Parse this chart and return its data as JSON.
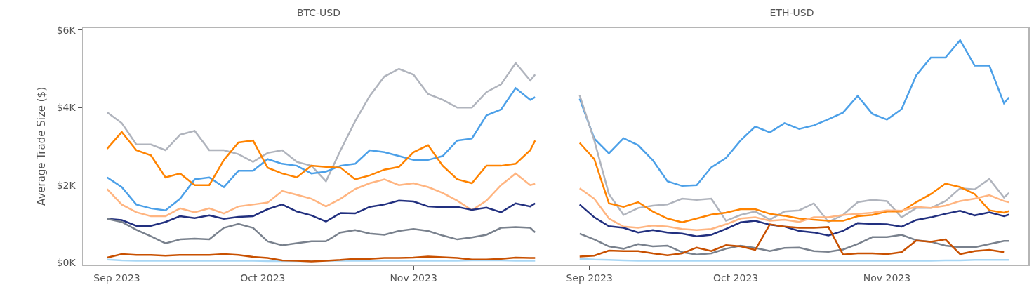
{
  "chart_data": [
    {
      "type": "line",
      "title": "BTC-USD",
      "ylabel": "Average Trade Size ($)",
      "x": [
        "2023-08-30",
        "2023-09-02",
        "2023-09-05",
        "2023-09-08",
        "2023-09-11",
        "2023-09-14",
        "2023-09-17",
        "2023-09-20",
        "2023-09-23",
        "2023-09-26",
        "2023-09-29",
        "2023-10-02",
        "2023-10-05",
        "2023-10-08",
        "2023-10-11",
        "2023-10-14",
        "2023-10-17",
        "2023-10-20",
        "2023-10-23",
        "2023-10-26",
        "2023-10-29",
        "2023-11-01",
        "2023-11-04",
        "2023-11-07",
        "2023-11-10",
        "2023-11-13",
        "2023-11-16",
        "2023-11-19",
        "2023-11-22",
        "2023-11-25",
        "2023-11-26"
      ],
      "xlim": [
        "2023-08-25",
        "2023-11-30"
      ],
      "xticks": [
        {
          "value": "2023-09-01",
          "label": "Sep 2023"
        },
        {
          "value": "2023-10-01",
          "label": "Oct 2023"
        },
        {
          "value": "2023-11-01",
          "label": "Nov 2023"
        }
      ],
      "ylim": [
        -0.05,
        6.05
      ],
      "yticks": [
        {
          "value": 0,
          "label": "$0K"
        },
        {
          "value": 2,
          "label": "$2K"
        },
        {
          "value": 4,
          "label": "$4K"
        },
        {
          "value": 6,
          "label": "$6K"
        }
      ],
      "series": [
        {
          "color": "#b0b4bd",
          "values": [
            3.88,
            3.6,
            3.05,
            3.05,
            2.9,
            3.3,
            3.4,
            2.9,
            2.9,
            2.8,
            2.6,
            2.83,
            2.9,
            2.6,
            2.5,
            2.1,
            2.9,
            3.65,
            4.3,
            4.8,
            5.0,
            4.85,
            4.35,
            4.2,
            4.0,
            4.0,
            4.4,
            4.6,
            5.15,
            4.7,
            4.85
          ]
        },
        {
          "color": "#4ca0e8",
          "values": [
            2.2,
            1.95,
            1.5,
            1.4,
            1.35,
            1.65,
            2.15,
            2.2,
            1.95,
            2.37,
            2.37,
            2.67,
            2.55,
            2.5,
            2.3,
            2.35,
            2.5,
            2.55,
            2.9,
            2.85,
            2.75,
            2.65,
            2.65,
            2.75,
            3.15,
            3.2,
            3.8,
            3.95,
            4.5,
            4.2,
            4.27
          ]
        },
        {
          "color": "#ff8300",
          "values": [
            2.94,
            3.37,
            2.9,
            2.77,
            2.2,
            2.3,
            2.0,
            2.0,
            2.65,
            3.1,
            3.15,
            2.45,
            2.3,
            2.2,
            2.5,
            2.47,
            2.45,
            2.15,
            2.25,
            2.4,
            2.47,
            2.85,
            3.03,
            2.5,
            2.15,
            2.05,
            2.5,
            2.5,
            2.55,
            2.9,
            3.15
          ]
        },
        {
          "color": "#ffb581",
          "values": [
            1.9,
            1.5,
            1.3,
            1.2,
            1.2,
            1.4,
            1.3,
            1.4,
            1.27,
            1.45,
            1.5,
            1.55,
            1.85,
            1.75,
            1.65,
            1.45,
            1.65,
            1.9,
            2.05,
            2.15,
            2.0,
            2.05,
            1.95,
            1.8,
            1.6,
            1.35,
            1.6,
            2.0,
            2.3,
            2.0,
            2.03
          ]
        },
        {
          "color": "#22307f",
          "values": [
            1.13,
            1.1,
            0.95,
            0.95,
            1.05,
            1.2,
            1.15,
            1.22,
            1.13,
            1.18,
            1.2,
            1.38,
            1.5,
            1.32,
            1.22,
            1.06,
            1.28,
            1.27,
            1.44,
            1.5,
            1.6,
            1.58,
            1.45,
            1.43,
            1.44,
            1.36,
            1.42,
            1.3,
            1.53,
            1.45,
            1.53
          ]
        },
        {
          "color": "#79818d",
          "values": [
            1.13,
            1.05,
            0.85,
            0.68,
            0.5,
            0.6,
            0.62,
            0.6,
            0.9,
            1.0,
            0.9,
            0.55,
            0.45,
            0.5,
            0.55,
            0.55,
            0.78,
            0.84,
            0.75,
            0.72,
            0.82,
            0.87,
            0.82,
            0.7,
            0.6,
            0.65,
            0.72,
            0.9,
            0.92,
            0.9,
            0.78
          ]
        },
        {
          "color": "#a9d7f5",
          "values": [
            0.08,
            0.06,
            0.05,
            0.05,
            0.05,
            0.05,
            0.05,
            0.05,
            0.05,
            0.05,
            0.05,
            0.04,
            0.04,
            0.04,
            0.04,
            0.05,
            0.05,
            0.05,
            0.05,
            0.05,
            0.05,
            0.05,
            0.05,
            0.05,
            0.05,
            0.06,
            0.06,
            0.06,
            0.05,
            0.05,
            0.05
          ]
        },
        {
          "color": "#c85000",
          "values": [
            0.13,
            0.22,
            0.2,
            0.2,
            0.18,
            0.2,
            0.2,
            0.2,
            0.22,
            0.2,
            0.15,
            0.12,
            0.06,
            0.05,
            0.03,
            0.05,
            0.07,
            0.1,
            0.1,
            0.12,
            0.12,
            0.13,
            0.16,
            0.14,
            0.12,
            0.08,
            0.08,
            0.1,
            0.13,
            0.12,
            0.12
          ]
        }
      ]
    },
    {
      "type": "line",
      "title": "ETH-USD",
      "tick_labels": "x",
      "x": [
        "2023-08-30",
        "2023-09-02",
        "2023-09-05",
        "2023-09-08",
        "2023-09-11",
        "2023-09-14",
        "2023-09-17",
        "2023-09-20",
        "2023-09-23",
        "2023-09-26",
        "2023-09-29",
        "2023-10-02",
        "2023-10-05",
        "2023-10-08",
        "2023-10-11",
        "2023-10-14",
        "2023-10-17",
        "2023-10-20",
        "2023-10-23",
        "2023-10-26",
        "2023-10-29",
        "2023-11-01",
        "2023-11-04",
        "2023-11-07",
        "2023-11-10",
        "2023-11-13",
        "2023-11-16",
        "2023-11-19",
        "2023-11-22",
        "2023-11-25",
        "2023-11-26"
      ],
      "xlim": [
        "2023-08-25",
        "2023-11-30"
      ],
      "xticks": [
        {
          "value": "2023-09-01",
          "label": "Sep 2023"
        },
        {
          "value": "2023-10-01",
          "label": "Oct 2023"
        },
        {
          "value": "2023-11-01",
          "label": "Nov 2023"
        }
      ],
      "ylim": [
        -0.05,
        6.05
      ],
      "series": [
        {
          "color": "#4ca0e8",
          "values": [
            4.23,
            3.2,
            2.82,
            3.21,
            3.03,
            2.64,
            2.1,
            1.98,
            2.0,
            2.46,
            2.7,
            3.15,
            3.51,
            3.36,
            3.6,
            3.45,
            3.54,
            3.7,
            3.87,
            4.3,
            3.84,
            3.69,
            3.96,
            4.83,
            5.29,
            5.29,
            5.74,
            5.08,
            5.08,
            4.11,
            4.26
          ]
        },
        {
          "color": "#b0b4bd",
          "values": [
            4.32,
            3.15,
            1.77,
            1.23,
            1.41,
            1.47,
            1.5,
            1.65,
            1.62,
            1.65,
            1.08,
            1.23,
            1.32,
            1.11,
            1.32,
            1.35,
            1.53,
            1.05,
            1.23,
            1.56,
            1.62,
            1.59,
            1.17,
            1.41,
            1.41,
            1.59,
            1.92,
            1.89,
            2.16,
            1.68,
            1.8
          ]
        },
        {
          "color": "#ff8300",
          "values": [
            3.09,
            2.67,
            1.53,
            1.44,
            1.56,
            1.32,
            1.14,
            1.04,
            1.14,
            1.24,
            1.29,
            1.38,
            1.38,
            1.26,
            1.21,
            1.14,
            1.11,
            1.08,
            1.08,
            1.2,
            1.23,
            1.32,
            1.32,
            1.56,
            1.77,
            2.04,
            1.95,
            1.77,
            1.35,
            1.29,
            1.33
          ]
        },
        {
          "color": "#ffb581",
          "values": [
            1.92,
            1.65,
            1.14,
            0.93,
            0.9,
            0.96,
            0.93,
            0.87,
            0.84,
            0.87,
            0.99,
            1.14,
            1.17,
            1.08,
            1.11,
            1.05,
            1.17,
            1.17,
            1.23,
            1.26,
            1.29,
            1.35,
            1.34,
            1.44,
            1.41,
            1.47,
            1.59,
            1.65,
            1.74,
            1.59,
            1.56
          ]
        },
        {
          "color": "#22307f",
          "values": [
            1.5,
            1.17,
            0.94,
            0.9,
            0.78,
            0.84,
            0.78,
            0.75,
            0.68,
            0.72,
            0.87,
            1.04,
            1.08,
            0.98,
            0.93,
            0.82,
            0.78,
            0.7,
            0.82,
            1.02,
            1.0,
            0.99,
            0.93,
            1.1,
            1.17,
            1.26,
            1.34,
            1.22,
            1.3,
            1.2,
            1.24
          ]
        },
        {
          "color": "#79818d",
          "values": [
            0.75,
            0.6,
            0.42,
            0.36,
            0.48,
            0.42,
            0.44,
            0.27,
            0.21,
            0.24,
            0.36,
            0.44,
            0.38,
            0.3,
            0.38,
            0.39,
            0.3,
            0.28,
            0.34,
            0.48,
            0.66,
            0.66,
            0.72,
            0.58,
            0.54,
            0.44,
            0.4,
            0.4,
            0.48,
            0.56,
            0.56
          ]
        },
        {
          "color": "#c85000",
          "values": [
            0.16,
            0.18,
            0.31,
            0.3,
            0.3,
            0.24,
            0.19,
            0.24,
            0.39,
            0.3,
            0.45,
            0.42,
            0.33,
            0.99,
            0.93,
            0.9,
            0.9,
            0.92,
            0.21,
            0.24,
            0.24,
            0.22,
            0.27,
            0.57,
            0.54,
            0.6,
            0.22,
            0.3,
            0.33,
            0.27,
            null
          ]
        },
        {
          "color": "#a9d7f5",
          "values": [
            0.1,
            0.08,
            0.07,
            0.06,
            0.05,
            0.05,
            0.05,
            0.05,
            0.05,
            0.05,
            0.05,
            0.05,
            0.05,
            0.05,
            0.05,
            0.05,
            0.05,
            0.05,
            0.05,
            0.05,
            0.05,
            0.05,
            0.05,
            0.05,
            0.05,
            0.06,
            0.06,
            0.07,
            0.07,
            0.07,
            0.07
          ]
        }
      ]
    }
  ]
}
